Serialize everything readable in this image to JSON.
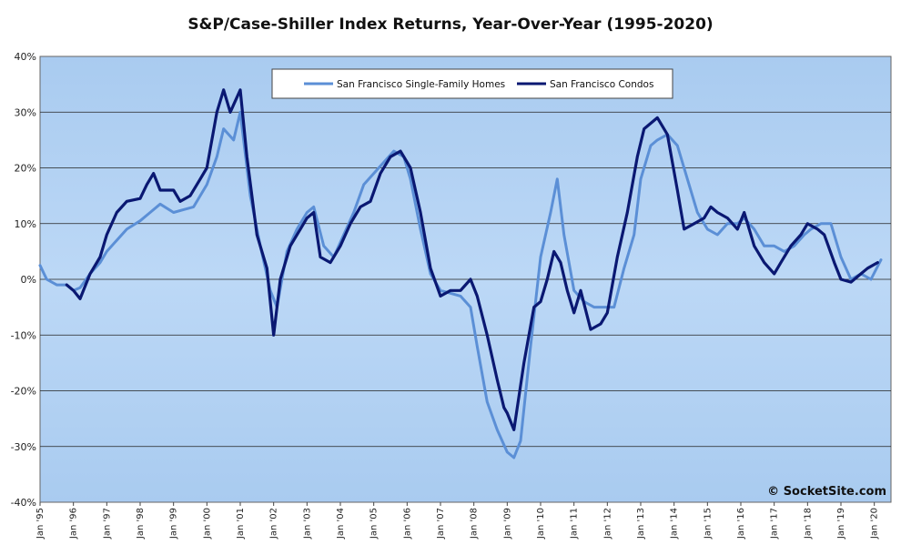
{
  "chart_data": {
    "type": "line",
    "title": "S&P/Case-Shiller Index Returns, Year-Over-Year (1995-2020)",
    "ylim": [
      -40,
      40
    ],
    "y_ticks": [
      "40%",
      "30%",
      "20%",
      "10%",
      "0%",
      "-10%",
      "-20%",
      "-30%",
      "-40%"
    ],
    "y_tick_values": [
      40,
      30,
      20,
      10,
      0,
      -10,
      -20,
      -30,
      -40
    ],
    "x_range": [
      1995.0,
      2020.5
    ],
    "x_ticks": [
      "Jan '95",
      "Jan '96",
      "Jan '97",
      "Jan '98",
      "Jan '99",
      "Jan '00",
      "Jan '01",
      "Jan '02",
      "Jan '03",
      "Jan '04",
      "Jan '05",
      "Jan '06",
      "Jan '07",
      "Jan '08",
      "Jan '09",
      "Jan '10",
      "Jan '11",
      "Jan '12",
      "Jan '13",
      "Jan '14",
      "Jan '15",
      "Jan '16",
      "Jan '17",
      "Jan '18",
      "Jan '19",
      "Jan '20"
    ],
    "x_tick_values": [
      1995,
      1996,
      1997,
      1998,
      1999,
      2000,
      2001,
      2002,
      2003,
      2004,
      2005,
      2006,
      2007,
      2008,
      2009,
      2010,
      2011,
      2012,
      2013,
      2014,
      2015,
      2016,
      2017,
      2018,
      2019,
      2020
    ],
    "grid": "horizontal",
    "legend_position": "top-center",
    "series": [
      {
        "name": "San Francisco Single-Family Homes",
        "color": "#5b8fd6",
        "x": [
          1995.0,
          1995.2,
          1995.5,
          1995.8,
          1996.0,
          1996.2,
          1996.5,
          1996.8,
          1997.0,
          1997.3,
          1997.6,
          1998.0,
          1998.3,
          1998.6,
          1999.0,
          1999.3,
          1999.6,
          2000.0,
          2000.3,
          2000.5,
          2000.8,
          2001.0,
          2001.3,
          2001.6,
          2001.9,
          2002.1,
          2002.4,
          2002.7,
          2003.0,
          2003.2,
          2003.5,
          2003.8,
          2004.1,
          2004.4,
          2004.7,
          2005.0,
          2005.3,
          2005.6,
          2005.9,
          2006.1,
          2006.4,
          2006.7,
          2007.0,
          2007.3,
          2007.6,
          2007.9,
          2008.1,
          2008.4,
          2008.7,
          2009.0,
          2009.2,
          2009.4,
          2009.7,
          2010.0,
          2010.3,
          2010.5,
          2010.7,
          2011.0,
          2011.3,
          2011.6,
          2011.9,
          2012.2,
          2012.5,
          2012.8,
          2013.0,
          2013.3,
          2013.5,
          2013.8,
          2014.1,
          2014.4,
          2014.7,
          2015.0,
          2015.3,
          2015.6,
          2015.9,
          2016.1,
          2016.4,
          2016.7,
          2017.0,
          2017.3,
          2017.6,
          2017.9,
          2018.1,
          2018.4,
          2018.7,
          2019.0,
          2019.3,
          2019.6,
          2019.9,
          2020.2
        ],
        "y": [
          2.5,
          0,
          -1,
          -1,
          -2,
          -1.5,
          1,
          3,
          5,
          7,
          9,
          10.5,
          12,
          13.5,
          12,
          12.5,
          13,
          17,
          22,
          27,
          25,
          30,
          15,
          6,
          -2,
          -5,
          5,
          9,
          12,
          13,
          6,
          4,
          8,
          12,
          17,
          19,
          21,
          23,
          22,
          18,
          9,
          1,
          -2,
          -2.5,
          -3,
          -5,
          -12,
          -22,
          -27,
          -31,
          -32,
          -29,
          -12,
          4,
          12,
          18,
          8,
          -2,
          -4,
          -5,
          -5,
          -5,
          2,
          8,
          18,
          24,
          25,
          26,
          24,
          18,
          12,
          9,
          8,
          10,
          10,
          11,
          9,
          6,
          6,
          5,
          6,
          8,
          9,
          10,
          10,
          4,
          0,
          1,
          0,
          3.5
        ]
      },
      {
        "name": "San Francisco Condos",
        "color": "#0a1872",
        "x": [
          1995.8,
          1996.0,
          1996.2,
          1996.5,
          1996.8,
          1997.0,
          1997.3,
          1997.6,
          1998.0,
          1998.2,
          1998.4,
          1998.6,
          1999.0,
          1999.2,
          1999.5,
          1999.8,
          2000.0,
          2000.3,
          2000.5,
          2000.7,
          2001.0,
          2001.2,
          2001.5,
          2001.8,
          2002.0,
          2002.2,
          2002.5,
          2002.8,
          2003.0,
          2003.2,
          2003.4,
          2003.7,
          2004.0,
          2004.3,
          2004.6,
          2004.9,
          2005.2,
          2005.5,
          2005.8,
          2006.1,
          2006.4,
          2006.7,
          2007.0,
          2007.3,
          2007.6,
          2007.9,
          2008.1,
          2008.4,
          2008.7,
          2008.9,
          2009.0,
          2009.2,
          2009.5,
          2009.8,
          2010.0,
          2010.2,
          2010.4,
          2010.6,
          2010.8,
          2011.0,
          2011.2,
          2011.5,
          2011.8,
          2012.0,
          2012.3,
          2012.6,
          2012.9,
          2013.1,
          2013.3,
          2013.5,
          2013.8,
          2014.1,
          2014.3,
          2014.6,
          2014.9,
          2015.1,
          2015.3,
          2015.6,
          2015.9,
          2016.1,
          2016.4,
          2016.7,
          2017.0,
          2017.2,
          2017.5,
          2017.8,
          2018.0,
          2018.3,
          2018.5,
          2018.8,
          2019.0,
          2019.3,
          2019.6,
          2019.8,
          2020.1
        ],
        "y": [
          -1,
          -2,
          -3.5,
          1,
          4,
          8,
          12,
          14,
          14.5,
          17,
          19,
          16,
          16,
          14,
          15,
          18,
          20,
          30,
          34,
          30,
          34,
          22,
          8,
          2,
          -10,
          0,
          6,
          9,
          11,
          12,
          4,
          3,
          6,
          10,
          13,
          14,
          19,
          22,
          23,
          20,
          12,
          2,
          -3,
          -2,
          -2,
          0,
          -3,
          -10,
          -18,
          -23,
          -24,
          -27,
          -15,
          -5,
          -4,
          0,
          5,
          3,
          -2,
          -6,
          -2,
          -9,
          -8,
          -6,
          4,
          12,
          22,
          27,
          28,
          29,
          26,
          16,
          9,
          10,
          11,
          13,
          12,
          11,
          9,
          12,
          6,
          3,
          1,
          3,
          6,
          8,
          10,
          9,
          8,
          3,
          0,
          -0.5,
          1,
          2,
          3
        ]
      }
    ]
  },
  "watermark": "© SocketSite.com"
}
